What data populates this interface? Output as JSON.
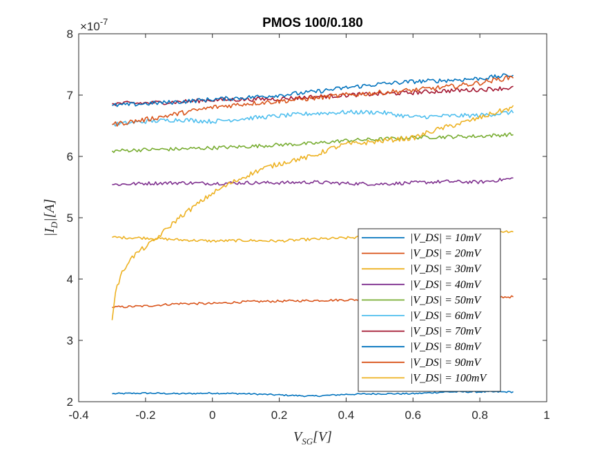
{
  "chart_data": {
    "type": "line",
    "title": "PMOS 100/0.180",
    "xlabel": "V_SG[V]",
    "ylabel": "|I_D|[A]",
    "y_exponent_label": "×10",
    "y_exponent_power": "-7",
    "xlim": [
      -0.4,
      1.0
    ],
    "ylim": [
      2,
      8
    ],
    "xticks": [
      -0.4,
      -0.2,
      0,
      0.2,
      0.4,
      0.6,
      0.8,
      1
    ],
    "xtick_labels": [
      "-0.4",
      "-0.2",
      "0",
      "0.2",
      "0.4",
      "0.6",
      "0.8",
      "1"
    ],
    "yticks": [
      2,
      3,
      4,
      5,
      6,
      7,
      8
    ],
    "ytick_labels": [
      "2",
      "3",
      "4",
      "5",
      "6",
      "7",
      "8"
    ],
    "grid": false,
    "legend_position": "lower-right",
    "x_range": [
      -0.3,
      0.9
    ],
    "series": [
      {
        "name": "|V_DS| = 10mV",
        "color": "#0072BD",
        "x": [
          -0.3,
          -0.2,
          -0.1,
          0.0,
          0.1,
          0.2,
          0.3,
          0.4,
          0.5,
          0.6,
          0.7,
          0.8,
          0.9
        ],
        "y": [
          2.13,
          2.14,
          2.13,
          2.14,
          2.13,
          2.11,
          2.09,
          2.12,
          2.13,
          2.13,
          2.16,
          2.16,
          2.16
        ]
      },
      {
        "name": "|V_DS| = 20mV",
        "color": "#D95319",
        "x": [
          -0.3,
          -0.2,
          -0.1,
          0.0,
          0.1,
          0.2,
          0.3,
          0.4,
          0.5,
          0.6,
          0.7,
          0.8,
          0.9
        ],
        "y": [
          3.54,
          3.56,
          3.6,
          3.6,
          3.63,
          3.64,
          3.65,
          3.66,
          3.67,
          3.68,
          3.69,
          3.7,
          3.71
        ]
      },
      {
        "name": "|V_DS| = 30mV",
        "color": "#EDB120",
        "x": [
          -0.3,
          -0.2,
          -0.1,
          0.0,
          0.1,
          0.2,
          0.3,
          0.4,
          0.5,
          0.6,
          0.7,
          0.8,
          0.9
        ],
        "y": [
          4.68,
          4.67,
          4.64,
          4.62,
          4.63,
          4.62,
          4.65,
          4.67,
          4.7,
          4.72,
          4.74,
          4.77,
          4.78
        ]
      },
      {
        "name": "|V_DS| = 40mV",
        "color": "#7E2F8E",
        "x": [
          -0.3,
          -0.2,
          -0.1,
          0.0,
          0.1,
          0.2,
          0.3,
          0.4,
          0.5,
          0.6,
          0.7,
          0.8,
          0.9
        ],
        "y": [
          5.54,
          5.56,
          5.57,
          5.56,
          5.57,
          5.57,
          5.58,
          5.56,
          5.55,
          5.57,
          5.59,
          5.58,
          5.64
        ]
      },
      {
        "name": "|V_DS| = 50mV",
        "color": "#77AC30",
        "x": [
          -0.3,
          -0.2,
          -0.1,
          0.0,
          0.1,
          0.2,
          0.3,
          0.4,
          0.5,
          0.6,
          0.7,
          0.8,
          0.9
        ],
        "y": [
          6.09,
          6.11,
          6.12,
          6.14,
          6.16,
          6.19,
          6.21,
          6.26,
          6.28,
          6.31,
          6.32,
          6.33,
          6.36
        ]
      },
      {
        "name": "|V_DS| = 60mV",
        "color": "#4DBEEE",
        "x": [
          -0.3,
          -0.2,
          -0.1,
          0.0,
          0.1,
          0.2,
          0.3,
          0.4,
          0.5,
          0.6,
          0.7,
          0.8,
          0.9
        ],
        "y": [
          6.52,
          6.57,
          6.6,
          6.57,
          6.62,
          6.66,
          6.7,
          6.72,
          6.72,
          6.64,
          6.66,
          6.67,
          6.72
        ]
      },
      {
        "name": "|V_DS| = 70mV",
        "color": "#A2142F",
        "x": [
          -0.3,
          -0.2,
          -0.1,
          0.0,
          0.1,
          0.2,
          0.3,
          0.4,
          0.5,
          0.6,
          0.7,
          0.8,
          0.9
        ],
        "y": [
          6.86,
          6.87,
          6.89,
          6.92,
          6.93,
          6.94,
          6.97,
          7.0,
          7.02,
          7.04,
          7.07,
          7.09,
          7.12
        ]
      },
      {
        "name": "|V_DS| = 80mV",
        "color": "#0072BD",
        "x": [
          -0.3,
          -0.2,
          -0.1,
          0.0,
          0.1,
          0.2,
          0.3,
          0.4,
          0.5,
          0.6,
          0.7,
          0.8,
          0.9
        ],
        "y": [
          6.83,
          6.86,
          6.89,
          6.93,
          6.96,
          7.0,
          7.05,
          7.12,
          7.18,
          7.22,
          7.24,
          7.27,
          7.33
        ]
      },
      {
        "name": "|V_DS| = 90mV",
        "color": "#D95319",
        "x": [
          -0.3,
          -0.2,
          -0.1,
          0.0,
          0.1,
          0.2,
          0.3,
          0.4,
          0.5,
          0.6,
          0.7,
          0.8,
          0.9
        ],
        "y": [
          6.52,
          6.6,
          6.7,
          6.8,
          6.86,
          6.9,
          6.95,
          7.0,
          7.04,
          7.08,
          7.13,
          7.2,
          7.3
        ]
      },
      {
        "name": "|V_DS| = 100mV",
        "color": "#EDB120",
        "x": [
          -0.3,
          -0.29,
          -0.27,
          -0.25,
          -0.22,
          -0.18,
          -0.14,
          -0.1,
          -0.05,
          0.0,
          0.05,
          0.1,
          0.15,
          0.2,
          0.25,
          0.3,
          0.35,
          0.4,
          0.45,
          0.5,
          0.55,
          0.6,
          0.65,
          0.7,
          0.75,
          0.8,
          0.85,
          0.9
        ],
        "y": [
          3.33,
          3.8,
          4.1,
          4.3,
          4.45,
          4.6,
          4.8,
          5.0,
          5.2,
          5.4,
          5.55,
          5.68,
          5.8,
          5.88,
          5.95,
          6.0,
          6.12,
          6.2,
          6.22,
          6.25,
          6.28,
          6.3,
          6.4,
          6.48,
          6.55,
          6.63,
          6.72,
          6.8
        ]
      }
    ]
  }
}
